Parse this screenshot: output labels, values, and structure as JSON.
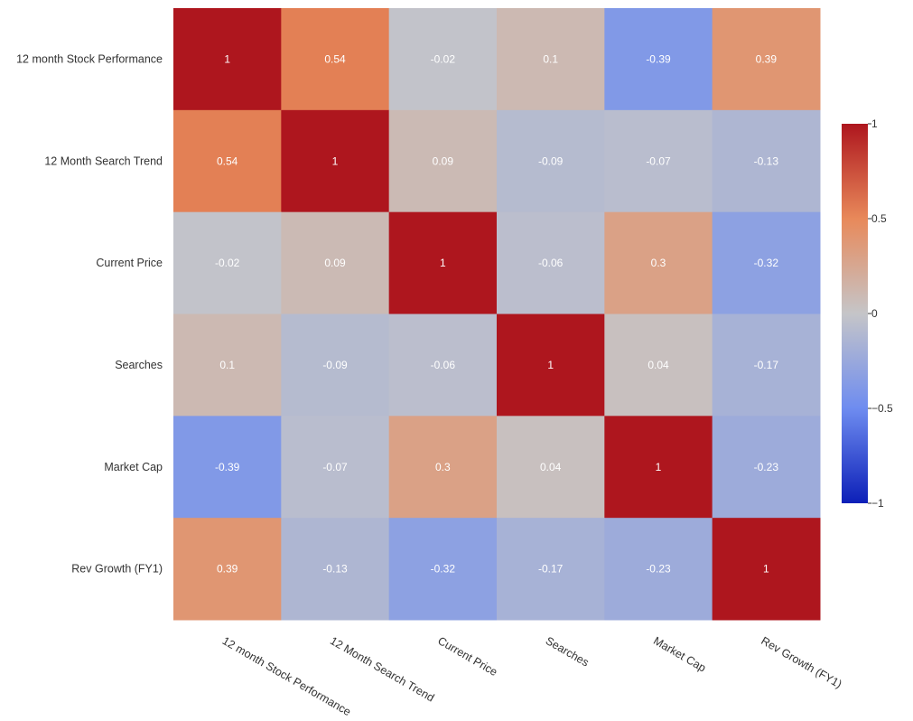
{
  "chart_data": {
    "type": "heatmap",
    "title": "",
    "labels": [
      "12 month Stock Performance",
      "12 Month Search Trend",
      "Current Price",
      "Searches",
      "Market Cap",
      "Rev Growth (FY1)"
    ],
    "matrix": [
      [
        1,
        0.54,
        -0.02,
        0.1,
        -0.39,
        0.39
      ],
      [
        0.54,
        1,
        0.09,
        -0.09,
        -0.07,
        -0.13
      ],
      [
        -0.02,
        0.09,
        1,
        -0.06,
        0.3,
        -0.32
      ],
      [
        0.1,
        -0.09,
        -0.06,
        1,
        0.04,
        -0.17
      ],
      [
        -0.39,
        -0.07,
        0.3,
        0.04,
        1,
        -0.23
      ],
      [
        0.39,
        -0.13,
        -0.32,
        -0.17,
        -0.23,
        1
      ]
    ],
    "colorscale": {
      "name": "coolwarm",
      "range": [
        -1,
        1
      ],
      "stops": [
        {
          "value": -1,
          "color": "#0c1fb8"
        },
        {
          "value": -0.5,
          "color": "#6e8cf0"
        },
        {
          "value": 0,
          "color": "#c5c5c8"
        },
        {
          "value": 0.5,
          "color": "#e8895a"
        },
        {
          "value": 1,
          "color": "#ae161e"
        }
      ],
      "ticks": [
        {
          "value": 1,
          "label": "1"
        },
        {
          "value": 0.5,
          "label": "0.5"
        },
        {
          "value": 0,
          "label": "0"
        },
        {
          "value": -0.5,
          "label": "−0.5"
        },
        {
          "value": -1,
          "label": "−1"
        }
      ]
    }
  }
}
